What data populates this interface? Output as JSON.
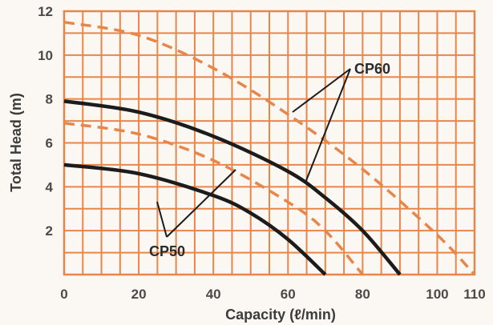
{
  "chart_data": {
    "type": "line",
    "xlabel": "Capacity (ℓ/min)",
    "ylabel": "Total Head (m)",
    "xlim": [
      0,
      110
    ],
    "ylim": [
      0,
      12
    ],
    "x_ticks": [
      0,
      20,
      40,
      60,
      80,
      100,
      110
    ],
    "x_tick_labels": [
      "0",
      "20",
      "40",
      "60",
      "80",
      "100",
      "110"
    ],
    "y_ticks": [
      2,
      4,
      6,
      8,
      10,
      12
    ],
    "y_tick_labels": [
      "2",
      "4",
      "6",
      "8",
      "10",
      "12"
    ],
    "grid": true,
    "grid_minor_x_step": 5,
    "grid_y_step": 1,
    "colors": {
      "background": "#fbf8f3",
      "grid": "#e8864a",
      "solid_curve": "#1c1c1c",
      "dashed_curve": "#e8864a",
      "text": "#4a4a4a"
    },
    "series": [
      {
        "name": "",
        "group": "CP60",
        "style": "dashed",
        "color": "#e8864a",
        "x": [
          0,
          20,
          40,
          60,
          80,
          100,
          110
        ],
        "y": [
          11.5,
          10.9,
          9.4,
          7.3,
          4.8,
          1.8,
          0
        ]
      },
      {
        "name": "",
        "group": "CP60",
        "style": "solid",
        "color": "#1c1c1c",
        "x": [
          0,
          20,
          40,
          60,
          70,
          80,
          90
        ],
        "y": [
          7.9,
          7.4,
          6.3,
          4.7,
          3.5,
          2.0,
          0
        ]
      },
      {
        "name": "",
        "group": "CP50",
        "style": "dashed",
        "color": "#e8864a",
        "x": [
          0,
          20,
          40,
          60,
          70,
          80
        ],
        "y": [
          6.9,
          6.4,
          5.2,
          3.3,
          2.0,
          0
        ]
      },
      {
        "name": "",
        "group": "CP50",
        "style": "solid",
        "color": "#1c1c1c",
        "x": [
          0,
          20,
          40,
          50,
          60,
          70
        ],
        "y": [
          5.0,
          4.6,
          3.6,
          2.8,
          1.6,
          0
        ]
      }
    ],
    "annotations": [
      {
        "text": "CP60",
        "points_to": [
          "CP60 dashed curve",
          "CP60 solid curve"
        ]
      },
      {
        "text": "CP50",
        "points_to": [
          "CP50 solid curve",
          "CP50 dashed curve"
        ]
      }
    ]
  }
}
